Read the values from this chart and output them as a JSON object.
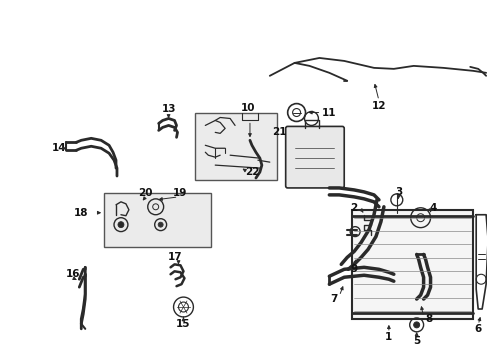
{
  "bg_color": "#ffffff",
  "line_color": "#2a2a2a",
  "label_color": "#111111",
  "fig_width": 4.89,
  "fig_height": 3.6,
  "dpi": 100,
  "font_size": 7.5,
  "lw": 1.1
}
